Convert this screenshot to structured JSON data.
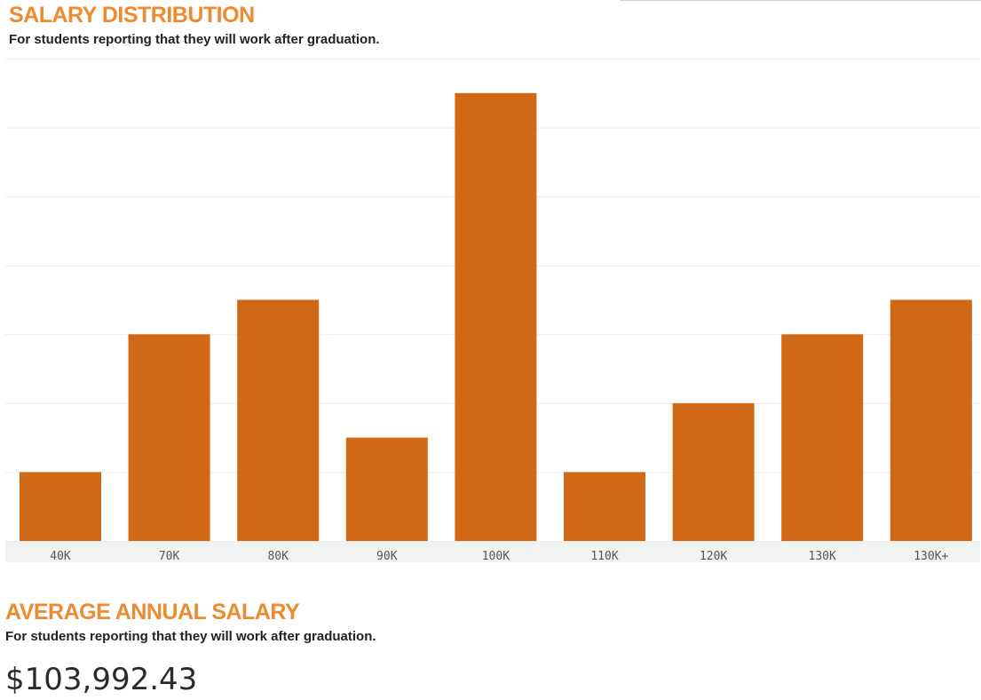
{
  "salary_distribution": {
    "title": "SALARY DISTRIBUTION",
    "subtitle": "For students reporting that they will work after graduation."
  },
  "average_salary": {
    "title": "AVERAGE ANNUAL SALARY",
    "subtitle": "For students reporting that they will work after graduation.",
    "value": "$103,992.43"
  },
  "colors": {
    "bar": "#d06816",
    "title": "#ee8a2f",
    "axis_band": "#f1f3f3",
    "gridline": "#ececec"
  },
  "chart_data": {
    "type": "bar",
    "title": "SALARY DISTRIBUTION",
    "categories": [
      "40K",
      "70K",
      "80K",
      "90K",
      "100K",
      "110K",
      "120K",
      "130K",
      "130K+"
    ],
    "values": [
      2,
      6,
      7,
      3,
      13,
      2,
      4,
      6,
      7
    ],
    "ylim": [
      0,
      14
    ],
    "grid": true,
    "legend": "none",
    "xlabel": "",
    "ylabel": ""
  }
}
